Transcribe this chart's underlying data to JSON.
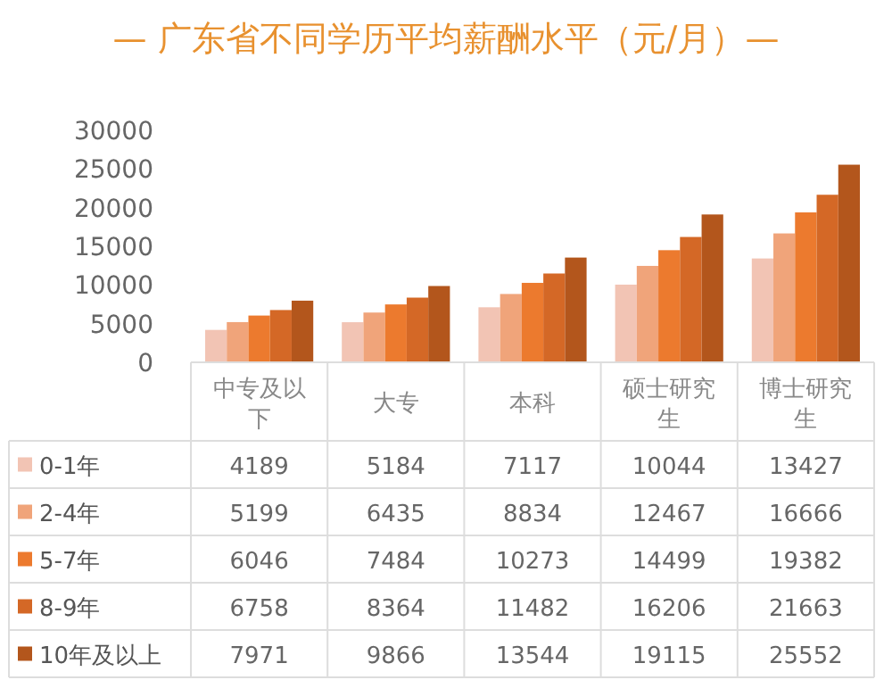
{
  "chart_data": {
    "type": "bar",
    "title": "— 广东省不同学历平均薪酬水平（元/月）—",
    "categories": [
      "中专及以下",
      "大专",
      "本科",
      "硕士研究生",
      "博士研究生"
    ],
    "series": [
      {
        "name": "0-1年",
        "color": "#f2c4b4",
        "values": [
          4189,
          5184,
          7117,
          10044,
          13427
        ]
      },
      {
        "name": "2-4年",
        "color": "#f0a47a",
        "values": [
          5199,
          6435,
          8834,
          12467,
          16666
        ]
      },
      {
        "name": "5-7年",
        "color": "#ec7a2e",
        "values": [
          6046,
          7484,
          10273,
          14499,
          19382
        ]
      },
      {
        "name": "8-9年",
        "color": "#d46826",
        "values": [
          6758,
          8364,
          11482,
          16206,
          21663
        ]
      },
      {
        "name": "10年及以上",
        "color": "#b3561c",
        "values": [
          7971,
          9866,
          13544,
          19115,
          25552
        ]
      }
    ],
    "ylim": [
      0,
      30000
    ],
    "yticks": [
      0,
      5000,
      10000,
      15000,
      20000,
      25000,
      30000
    ],
    "grid": false,
    "data_labels": true,
    "legend": "bottom"
  }
}
